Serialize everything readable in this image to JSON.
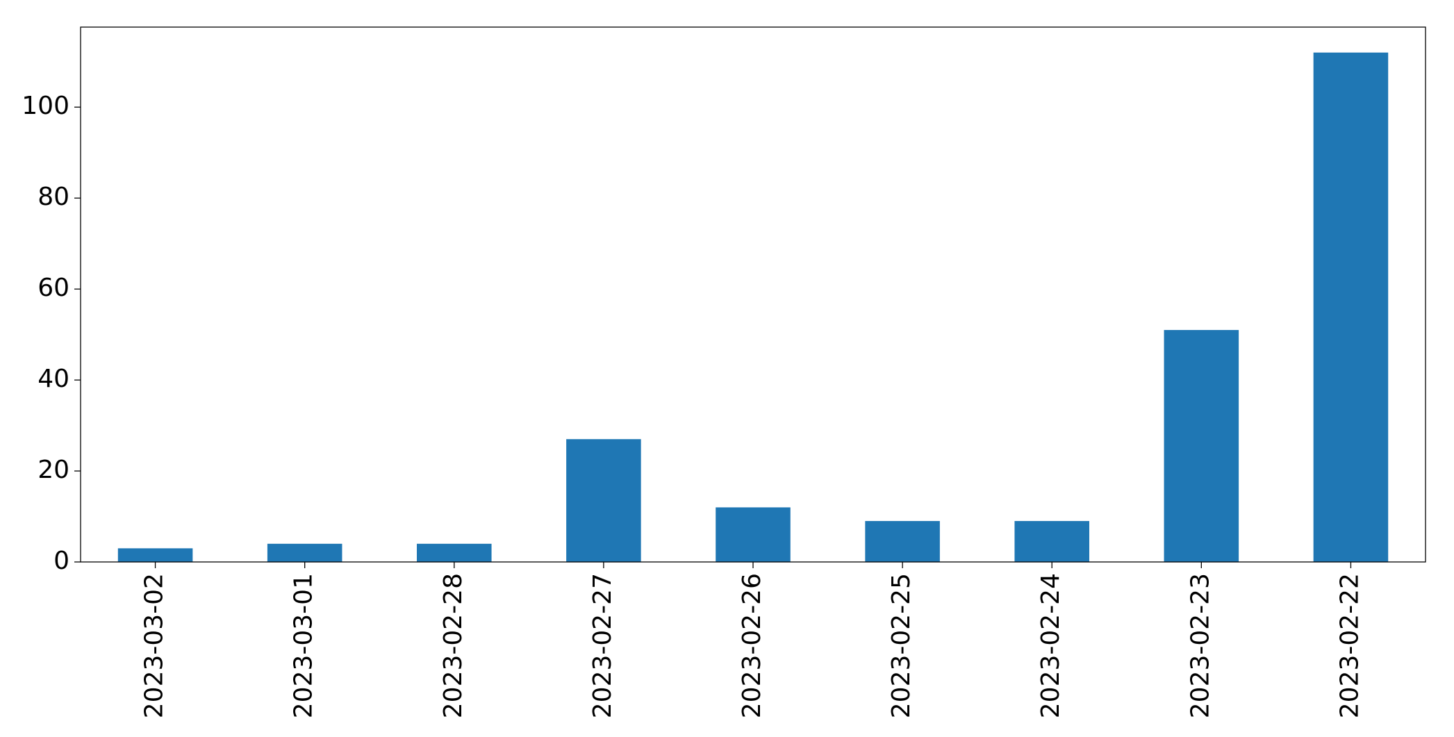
{
  "chart_data": {
    "type": "bar",
    "categories": [
      "2023-03-02",
      "2023-03-01",
      "2023-02-28",
      "2023-02-27",
      "2023-02-26",
      "2023-02-25",
      "2023-02-24",
      "2023-02-23",
      "2023-02-22"
    ],
    "values": [
      3,
      4,
      4,
      27,
      12,
      9,
      9,
      51,
      112
    ],
    "color": "#1f77b4",
    "ylim": [
      0,
      117.6
    ],
    "yticks": [
      0,
      20,
      40,
      60,
      80,
      100
    ],
    "grid": false
  }
}
